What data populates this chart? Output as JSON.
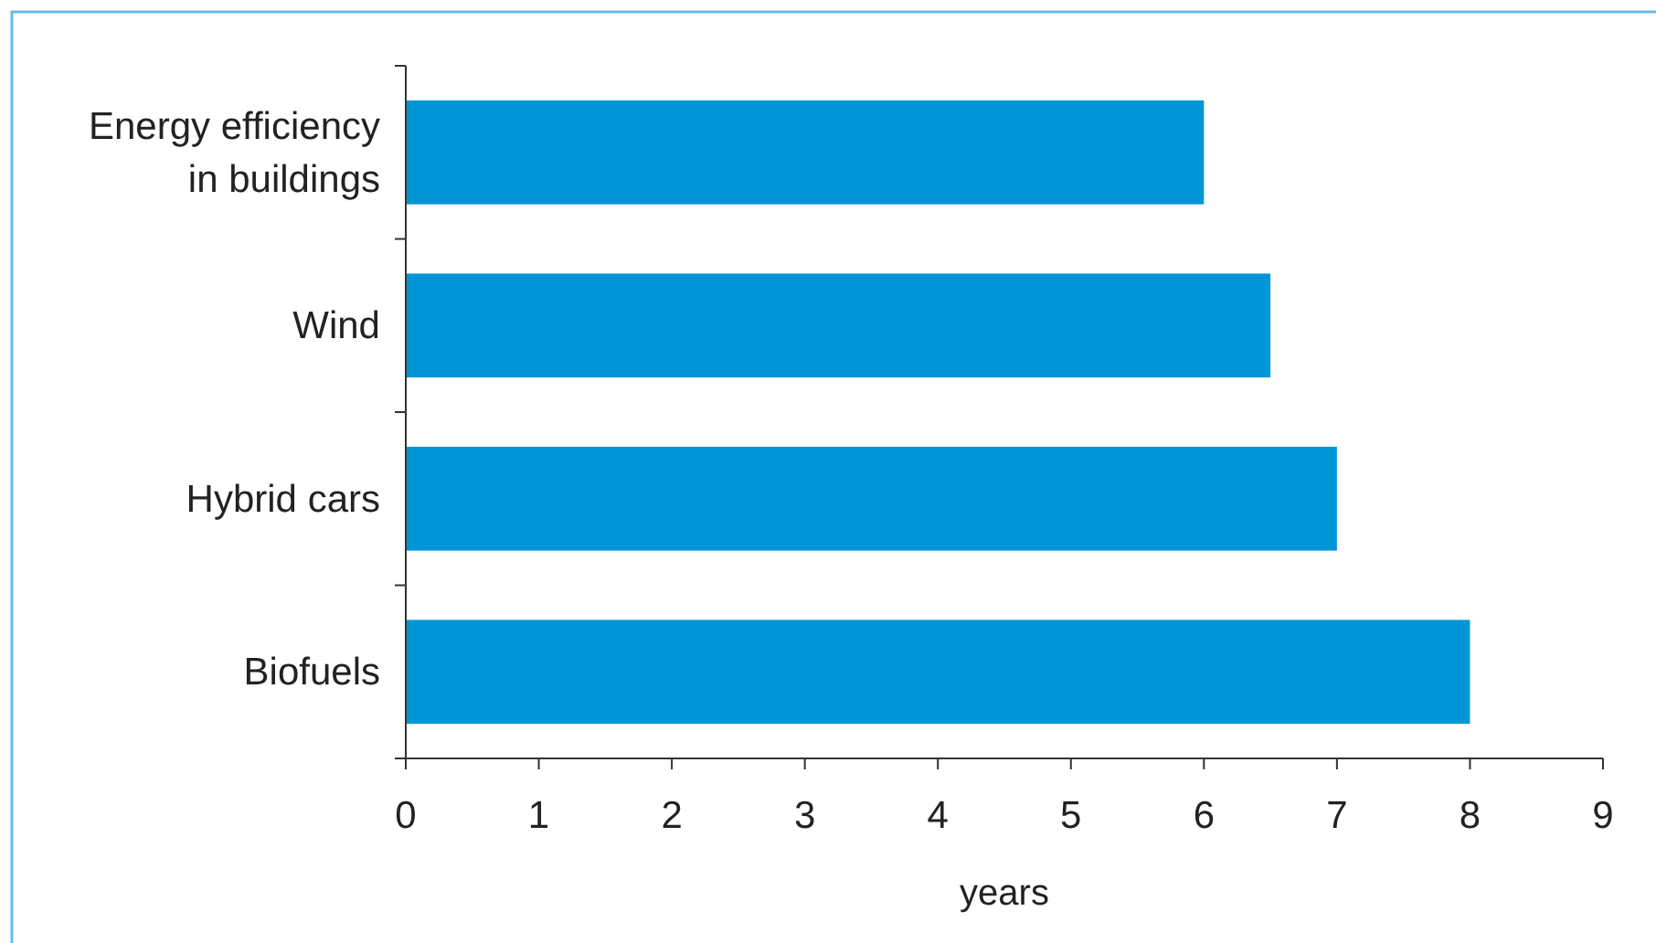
{
  "chart_data": {
    "type": "bar",
    "orientation": "horizontal",
    "xlabel": "years",
    "categories": [
      "Energy efficiency in buildings",
      "Wind",
      "Hybrid cars",
      "Biofuels"
    ],
    "values": [
      6,
      6.5,
      7,
      8
    ],
    "color": "#0096d6",
    "xlim": [
      0,
      9
    ],
    "xticks": [
      0,
      1,
      2,
      3,
      4,
      5,
      6,
      7,
      8,
      9
    ],
    "grid": false
  }
}
